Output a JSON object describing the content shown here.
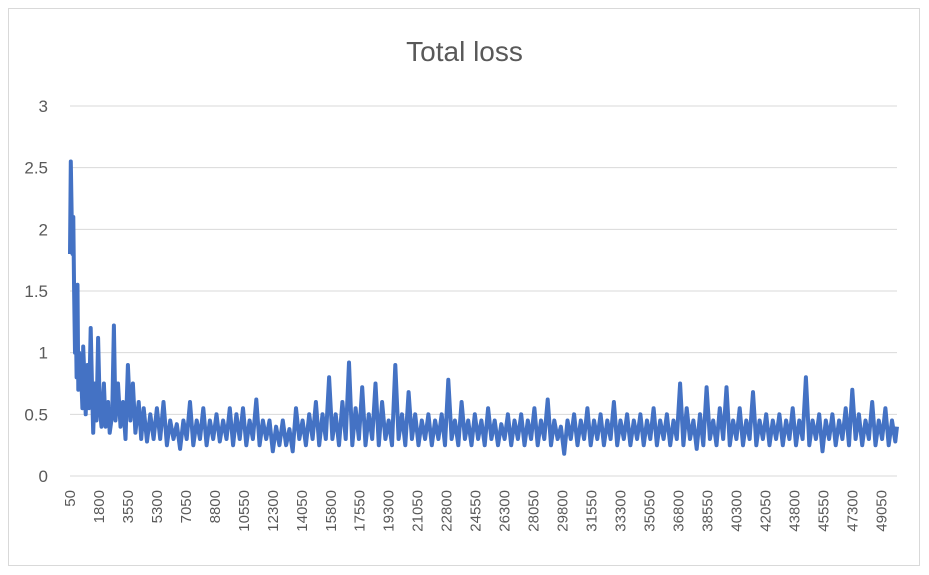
{
  "chart_data": {
    "type": "line",
    "title": "Total loss",
    "xlabel": "",
    "ylabel": "",
    "ylim": [
      0,
      3
    ],
    "yticks": [
      "0",
      "0.5",
      "1",
      "1.5",
      "2",
      "2.5",
      "3"
    ],
    "xlim": [
      50,
      50000
    ],
    "xticks": [
      "50",
      "1800",
      "3550",
      "5300",
      "7050",
      "8800",
      "10550",
      "12300",
      "14050",
      "15800",
      "17550",
      "19300",
      "21050",
      "22800",
      "24550",
      "26300",
      "28050",
      "29800",
      "31550",
      "33300",
      "35050",
      "36800",
      "38550",
      "40300",
      "42050",
      "43800",
      "45550",
      "47300",
      "49050"
    ],
    "grid": true,
    "legend": "none",
    "series": [
      {
        "color": "#4472c4",
        "points": [
          [
            50,
            1.8
          ],
          [
            100,
            2.55
          ],
          [
            150,
            2.1
          ],
          [
            200,
            1.8
          ],
          [
            250,
            2.1
          ],
          [
            300,
            1.5
          ],
          [
            350,
            1.0
          ],
          [
            400,
            1.3
          ],
          [
            450,
            0.8
          ],
          [
            500,
            1.55
          ],
          [
            550,
            0.7
          ],
          [
            600,
            1.0
          ],
          [
            650,
            0.75
          ],
          [
            700,
            0.9
          ],
          [
            800,
            0.55
          ],
          [
            850,
            1.05
          ],
          [
            950,
            0.7
          ],
          [
            1000,
            0.5
          ],
          [
            1100,
            0.9
          ],
          [
            1200,
            0.55
          ],
          [
            1300,
            1.2
          ],
          [
            1400,
            0.6
          ],
          [
            1450,
            0.35
          ],
          [
            1550,
            0.75
          ],
          [
            1650,
            0.45
          ],
          [
            1750,
            1.12
          ],
          [
            1850,
            0.55
          ],
          [
            1950,
            0.4
          ],
          [
            2100,
            0.75
          ],
          [
            2200,
            0.4
          ],
          [
            2350,
            0.6
          ],
          [
            2450,
            0.35
          ],
          [
            2600,
            0.5
          ],
          [
            2700,
            1.22
          ],
          [
            2800,
            0.45
          ],
          [
            2950,
            0.75
          ],
          [
            3100,
            0.4
          ],
          [
            3250,
            0.6
          ],
          [
            3400,
            0.3
          ],
          [
            3550,
            0.9
          ],
          [
            3700,
            0.45
          ],
          [
            3850,
            0.75
          ],
          [
            4000,
            0.35
          ],
          [
            4200,
            0.6
          ],
          [
            4350,
            0.3
          ],
          [
            4500,
            0.55
          ],
          [
            4700,
            0.28
          ],
          [
            4900,
            0.5
          ],
          [
            5100,
            0.3
          ],
          [
            5300,
            0.55
          ],
          [
            5500,
            0.3
          ],
          [
            5700,
            0.6
          ],
          [
            5900,
            0.25
          ],
          [
            6100,
            0.45
          ],
          [
            6300,
            0.3
          ],
          [
            6500,
            0.42
          ],
          [
            6700,
            0.22
          ],
          [
            6900,
            0.45
          ],
          [
            7100,
            0.3
          ],
          [
            7300,
            0.6
          ],
          [
            7500,
            0.25
          ],
          [
            7700,
            0.45
          ],
          [
            7900,
            0.3
          ],
          [
            8100,
            0.55
          ],
          [
            8300,
            0.25
          ],
          [
            8500,
            0.45
          ],
          [
            8700,
            0.3
          ],
          [
            8900,
            0.5
          ],
          [
            9100,
            0.28
          ],
          [
            9300,
            0.45
          ],
          [
            9500,
            0.3
          ],
          [
            9700,
            0.55
          ],
          [
            9900,
            0.25
          ],
          [
            10100,
            0.5
          ],
          [
            10300,
            0.3
          ],
          [
            10500,
            0.55
          ],
          [
            10700,
            0.25
          ],
          [
            10900,
            0.45
          ],
          [
            11100,
            0.3
          ],
          [
            11300,
            0.62
          ],
          [
            11500,
            0.25
          ],
          [
            11700,
            0.45
          ],
          [
            11900,
            0.3
          ],
          [
            12100,
            0.45
          ],
          [
            12300,
            0.2
          ],
          [
            12500,
            0.4
          ],
          [
            12700,
            0.25
          ],
          [
            12900,
            0.45
          ],
          [
            13100,
            0.25
          ],
          [
            13300,
            0.38
          ],
          [
            13500,
            0.2
          ],
          [
            13700,
            0.55
          ],
          [
            13900,
            0.3
          ],
          [
            14100,
            0.45
          ],
          [
            14300,
            0.25
          ],
          [
            14500,
            0.5
          ],
          [
            14700,
            0.3
          ],
          [
            14900,
            0.6
          ],
          [
            15100,
            0.25
          ],
          [
            15300,
            0.5
          ],
          [
            15500,
            0.3
          ],
          [
            15700,
            0.8
          ],
          [
            15900,
            0.3
          ],
          [
            16100,
            0.5
          ],
          [
            16300,
            0.25
          ],
          [
            16500,
            0.6
          ],
          [
            16700,
            0.3
          ],
          [
            16900,
            0.92
          ],
          [
            17100,
            0.25
          ],
          [
            17300,
            0.55
          ],
          [
            17500,
            0.3
          ],
          [
            17700,
            0.72
          ],
          [
            17900,
            0.25
          ],
          [
            18100,
            0.5
          ],
          [
            18300,
            0.3
          ],
          [
            18500,
            0.75
          ],
          [
            18700,
            0.25
          ],
          [
            18900,
            0.6
          ],
          [
            19100,
            0.3
          ],
          [
            19300,
            0.45
          ],
          [
            19500,
            0.25
          ],
          [
            19700,
            0.9
          ],
          [
            19900,
            0.3
          ],
          [
            20100,
            0.5
          ],
          [
            20300,
            0.25
          ],
          [
            20500,
            0.68
          ],
          [
            20700,
            0.3
          ],
          [
            20900,
            0.5
          ],
          [
            21100,
            0.25
          ],
          [
            21300,
            0.45
          ],
          [
            21500,
            0.3
          ],
          [
            21700,
            0.5
          ],
          [
            21900,
            0.25
          ],
          [
            22100,
            0.45
          ],
          [
            22300,
            0.3
          ],
          [
            22500,
            0.5
          ],
          [
            22700,
            0.25
          ],
          [
            22900,
            0.78
          ],
          [
            23100,
            0.3
          ],
          [
            23300,
            0.45
          ],
          [
            23500,
            0.25
          ],
          [
            23700,
            0.6
          ],
          [
            23900,
            0.3
          ],
          [
            24100,
            0.45
          ],
          [
            24300,
            0.25
          ],
          [
            24500,
            0.5
          ],
          [
            24700,
            0.3
          ],
          [
            24900,
            0.45
          ],
          [
            25100,
            0.25
          ],
          [
            25300,
            0.55
          ],
          [
            25500,
            0.3
          ],
          [
            25700,
            0.45
          ],
          [
            25900,
            0.25
          ],
          [
            26100,
            0.42
          ],
          [
            26300,
            0.3
          ],
          [
            26500,
            0.5
          ],
          [
            26700,
            0.25
          ],
          [
            26900,
            0.45
          ],
          [
            27100,
            0.3
          ],
          [
            27300,
            0.5
          ],
          [
            27500,
            0.25
          ],
          [
            27700,
            0.45
          ],
          [
            27900,
            0.3
          ],
          [
            28100,
            0.55
          ],
          [
            28300,
            0.25
          ],
          [
            28500,
            0.45
          ],
          [
            28700,
            0.3
          ],
          [
            28900,
            0.62
          ],
          [
            29100,
            0.25
          ],
          [
            29300,
            0.45
          ],
          [
            29500,
            0.3
          ],
          [
            29700,
            0.4
          ],
          [
            29900,
            0.18
          ],
          [
            30100,
            0.45
          ],
          [
            30300,
            0.3
          ],
          [
            30500,
            0.5
          ],
          [
            30700,
            0.25
          ],
          [
            30900,
            0.45
          ],
          [
            31100,
            0.3
          ],
          [
            31300,
            0.55
          ],
          [
            31500,
            0.25
          ],
          [
            31700,
            0.45
          ],
          [
            31900,
            0.3
          ],
          [
            32100,
            0.5
          ],
          [
            32300,
            0.25
          ],
          [
            32500,
            0.45
          ],
          [
            32700,
            0.3
          ],
          [
            32900,
            0.6
          ],
          [
            33100,
            0.25
          ],
          [
            33300,
            0.45
          ],
          [
            33500,
            0.3
          ],
          [
            33700,
            0.5
          ],
          [
            33900,
            0.25
          ],
          [
            34100,
            0.45
          ],
          [
            34300,
            0.3
          ],
          [
            34500,
            0.5
          ],
          [
            34700,
            0.25
          ],
          [
            34900,
            0.45
          ],
          [
            35100,
            0.3
          ],
          [
            35300,
            0.55
          ],
          [
            35500,
            0.25
          ],
          [
            35700,
            0.45
          ],
          [
            35900,
            0.3
          ],
          [
            36100,
            0.5
          ],
          [
            36300,
            0.25
          ],
          [
            36500,
            0.45
          ],
          [
            36700,
            0.3
          ],
          [
            36900,
            0.75
          ],
          [
            37100,
            0.25
          ],
          [
            37300,
            0.55
          ],
          [
            37500,
            0.3
          ],
          [
            37700,
            0.45
          ],
          [
            37900,
            0.22
          ],
          [
            38100,
            0.5
          ],
          [
            38300,
            0.25
          ],
          [
            38500,
            0.72
          ],
          [
            38700,
            0.3
          ],
          [
            38900,
            0.45
          ],
          [
            39100,
            0.25
          ],
          [
            39300,
            0.55
          ],
          [
            39500,
            0.3
          ],
          [
            39700,
            0.72
          ],
          [
            39900,
            0.25
          ],
          [
            40100,
            0.45
          ],
          [
            40300,
            0.3
          ],
          [
            40500,
            0.55
          ],
          [
            40700,
            0.25
          ],
          [
            40900,
            0.45
          ],
          [
            41100,
            0.3
          ],
          [
            41300,
            0.68
          ],
          [
            41500,
            0.25
          ],
          [
            41700,
            0.45
          ],
          [
            41900,
            0.3
          ],
          [
            42100,
            0.5
          ],
          [
            42300,
            0.25
          ],
          [
            42500,
            0.45
          ],
          [
            42700,
            0.3
          ],
          [
            42900,
            0.5
          ],
          [
            43100,
            0.25
          ],
          [
            43300,
            0.45
          ],
          [
            43500,
            0.3
          ],
          [
            43700,
            0.55
          ],
          [
            43900,
            0.25
          ],
          [
            44100,
            0.45
          ],
          [
            44300,
            0.3
          ],
          [
            44500,
            0.8
          ],
          [
            44700,
            0.25
          ],
          [
            44900,
            0.45
          ],
          [
            45100,
            0.3
          ],
          [
            45300,
            0.5
          ],
          [
            45500,
            0.2
          ],
          [
            45700,
            0.45
          ],
          [
            45900,
            0.3
          ],
          [
            46100,
            0.5
          ],
          [
            46300,
            0.25
          ],
          [
            46500,
            0.45
          ],
          [
            46700,
            0.3
          ],
          [
            46900,
            0.55
          ],
          [
            47100,
            0.25
          ],
          [
            47300,
            0.7
          ],
          [
            47500,
            0.3
          ],
          [
            47700,
            0.5
          ],
          [
            47900,
            0.25
          ],
          [
            48100,
            0.45
          ],
          [
            48300,
            0.3
          ],
          [
            48500,
            0.6
          ],
          [
            48700,
            0.25
          ],
          [
            48900,
            0.45
          ],
          [
            49100,
            0.3
          ],
          [
            49300,
            0.55
          ],
          [
            49500,
            0.25
          ],
          [
            49700,
            0.45
          ],
          [
            49900,
            0.28
          ],
          [
            50000,
            0.4
          ]
        ]
      }
    ]
  }
}
